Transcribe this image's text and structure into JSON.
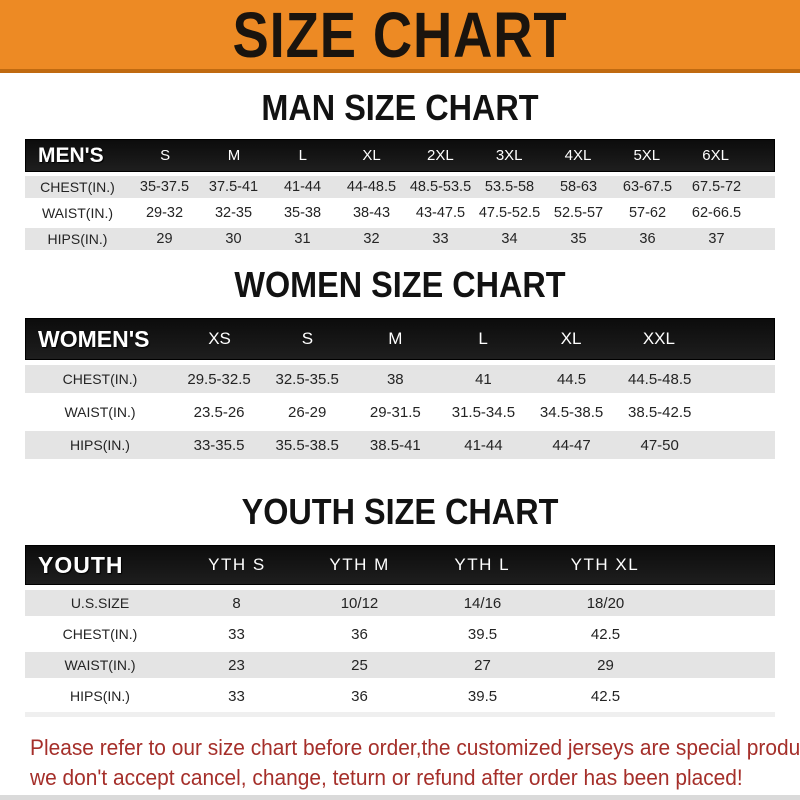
{
  "banner": {
    "title": "SIZE CHART"
  },
  "colors": {
    "banner_orange": "#ED8A24",
    "banner_edge": "#C06A10",
    "header_black": "#141414",
    "row_gray": "#E4E4E4",
    "note_red": "#A52F2A"
  },
  "sections": [
    {
      "title": "MAN SIZE CHART",
      "table": {
        "corner": "MEN'S",
        "columns": [
          "S",
          "M",
          "L",
          "XL",
          "2XL",
          "3XL",
          "4XL",
          "5XL",
          "6XL"
        ],
        "rows": [
          {
            "label": "CHEST(IN.)",
            "values": [
              "35-37.5",
              "37.5-41",
              "41-44",
              "44-48.5",
              "48.5-53.5",
              "53.5-58",
              "58-63",
              "63-67.5",
              "67.5-72"
            ]
          },
          {
            "label": "WAIST(IN.)",
            "values": [
              "29-32",
              "32-35",
              "35-38",
              "38-43",
              "43-47.5",
              "47.5-52.5",
              "52.5-57",
              "57-62",
              "62-66.5"
            ]
          },
          {
            "label": "HIPS(IN.)",
            "values": [
              "29",
              "30",
              "31",
              "32",
              "33",
              "34",
              "35",
              "36",
              "37"
            ]
          }
        ]
      }
    },
    {
      "title": "WOMEN SIZE CHART",
      "table": {
        "corner": "WOMEN'S",
        "columns": [
          "XS",
          "S",
          "M",
          "L",
          "XL",
          "XXL"
        ],
        "rows": [
          {
            "label": "CHEST(IN.)",
            "values": [
              "29.5-32.5",
              "32.5-35.5",
              "38",
              "41",
              "44.5",
              "44.5-48.5"
            ]
          },
          {
            "label": "WAIST(IN.)",
            "values": [
              "23.5-26",
              "26-29",
              "29-31.5",
              "31.5-34.5",
              "34.5-38.5",
              "38.5-42.5"
            ]
          },
          {
            "label": "HIPS(IN.)",
            "values": [
              "33-35.5",
              "35.5-38.5",
              "38.5-41",
              "41-44",
              "44-47",
              "47-50"
            ]
          }
        ]
      }
    },
    {
      "title": "YOUTH SIZE CHART",
      "table": {
        "corner": "YOUTH",
        "columns": [
          "YTH S",
          "YTH M",
          "YTH L",
          "YTH XL"
        ],
        "rows": [
          {
            "label": "U.S.SIZE",
            "values": [
              "8",
              "10/12",
              "14/16",
              "18/20"
            ]
          },
          {
            "label": "CHEST(IN.)",
            "values": [
              "33",
              "36",
              "39.5",
              "42.5"
            ]
          },
          {
            "label": "WAIST(IN.)",
            "values": [
              "23",
              "25",
              "27",
              "29"
            ]
          },
          {
            "label": "HIPS(IN.)",
            "values": [
              "33",
              "36",
              "39.5",
              "42.5"
            ]
          }
        ]
      }
    }
  ],
  "note": {
    "line1": "Please refer to our size chart before order,the customized jerseys are special products,",
    "line2": "we don't accept cancel, change, teturn or refund after order has been placed!"
  }
}
